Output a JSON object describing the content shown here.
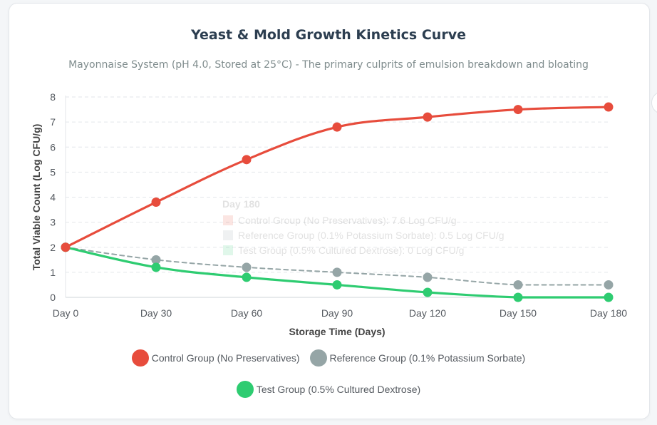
{
  "title": "Yeast & Mold Growth Kinetics Curve",
  "subtitle": "Mayonnaise System (pH 4.0, Stored at 25°C) - The primary culprits of emulsion breakdown and bloating",
  "tooltip": {
    "title": "Day 180",
    "rows": [
      "Control Group (No Preservatives): 7.6 Log CFU/g",
      "Reference Group (0.1% Potassium Sorbate): 0.5 Log CFU/g",
      "Test Group (0.5% Cultured Dextrose): 0 Log CFU/g"
    ]
  },
  "chart_data": {
    "type": "line",
    "title": "Yeast & Mold Growth Kinetics Curve",
    "subtitle": "Mayonnaise System (pH 4.0, Stored at 25°C) - The primary culprits of emulsion breakdown and bloating",
    "xlabel": "Storage Time (Days)",
    "ylabel": "Total Viable Count (Log CFU/g)",
    "categories": [
      "Day 0",
      "Day 30",
      "Day 60",
      "Day 90",
      "Day 120",
      "Day 150",
      "Day 180"
    ],
    "ylim": [
      0,
      8
    ],
    "yticks": [
      "0",
      "1",
      "2",
      "3",
      "4",
      "5",
      "6",
      "7",
      "8"
    ],
    "grid": true,
    "legend_position": "bottom",
    "series": [
      {
        "name": "Control Group (No Preservatives)",
        "values": [
          2,
          3.8,
          5.5,
          6.8,
          7.2,
          7.5,
          7.6
        ],
        "color": "#e74c3c",
        "style": "solid"
      },
      {
        "name": "Reference Group (0.1% Potassium Sorbate)",
        "values": [
          2,
          1.5,
          1.2,
          1.0,
          0.8,
          0.5,
          0.5
        ],
        "color": "#95a5a6",
        "style": "dashed"
      },
      {
        "name": "Test Group (0.5% Cultured Dextrose)",
        "values": [
          2,
          1.2,
          0.8,
          0.5,
          0.2,
          0,
          0
        ],
        "color": "#2ecc71",
        "style": "solid"
      }
    ]
  }
}
